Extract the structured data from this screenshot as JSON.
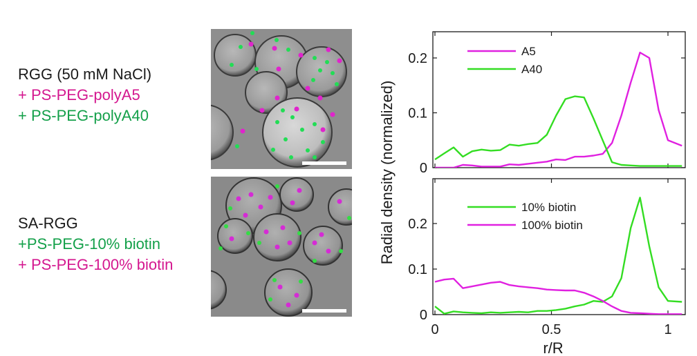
{
  "labels": {
    "top": [
      {
        "text": "RGG (50 mM NaCl)",
        "color": "#1a1a1a"
      },
      {
        "text": "+ PS-PEG-polyA5",
        "color": "#d4178f"
      },
      {
        "text": "+ PS-PEG-polyA40",
        "color": "#14a04a"
      }
    ],
    "bottom": [
      {
        "text": "SA-RGG",
        "color": "#1a1a1a"
      },
      {
        "text": "+PS-PEG-10% biotin",
        "color": "#14a04a"
      },
      {
        "text": "+ PS-PEG-100% biotin",
        "color": "#d4178f"
      }
    ]
  },
  "colors": {
    "magenta": "#e020e0",
    "green": "#33dd22",
    "label_magenta": "#d4178f",
    "label_green": "#14a04a"
  },
  "chart_data": [
    {
      "type": "line",
      "ylabel": "Radial density (normalized)",
      "xlabel": "",
      "xlim": [
        0,
        1.07
      ],
      "ylim": [
        0,
        0.25
      ],
      "yticks": [
        "0",
        "0.1",
        "0.2"
      ],
      "legend_position": "top-right",
      "series": [
        {
          "name": "A5",
          "color": "#e020e0",
          "x": [
            0,
            0.04,
            0.08,
            0.12,
            0.16,
            0.2,
            0.24,
            0.28,
            0.32,
            0.36,
            0.4,
            0.44,
            0.48,
            0.52,
            0.56,
            0.6,
            0.64,
            0.68,
            0.72,
            0.76,
            0.8,
            0.84,
            0.88,
            0.92,
            0.96,
            1.0,
            1.06
          ],
          "values": [
            0,
            0,
            0,
            0.005,
            0.004,
            0.002,
            0.002,
            0.002,
            0.006,
            0.005,
            0.007,
            0.009,
            0.011,
            0.015,
            0.014,
            0.02,
            0.02,
            0.022,
            0.025,
            0.045,
            0.095,
            0.155,
            0.21,
            0.2,
            0.105,
            0.05,
            0.04
          ]
        },
        {
          "name": "A40",
          "color": "#33dd22",
          "x": [
            0,
            0.04,
            0.08,
            0.12,
            0.16,
            0.2,
            0.24,
            0.28,
            0.32,
            0.36,
            0.4,
            0.44,
            0.48,
            0.52,
            0.56,
            0.6,
            0.64,
            0.68,
            0.72,
            0.76,
            0.8,
            0.84,
            0.88,
            0.92,
            0.96,
            1.0,
            1.06
          ],
          "values": [
            0.015,
            0.026,
            0.037,
            0.02,
            0.03,
            0.033,
            0.031,
            0.032,
            0.042,
            0.04,
            0.043,
            0.045,
            0.06,
            0.095,
            0.125,
            0.13,
            0.128,
            0.09,
            0.05,
            0.01,
            0.005,
            0.004,
            0.003,
            0.003,
            0.003,
            0.003,
            0.003
          ]
        }
      ]
    },
    {
      "type": "line",
      "ylabel": "",
      "xlabel": "r/R",
      "xlim": [
        0,
        1.07
      ],
      "ylim": [
        0,
        0.29
      ],
      "xticks": [
        "0",
        "0.5",
        "1"
      ],
      "yticks": [
        "0",
        "0.1",
        "0.2"
      ],
      "legend_position": "top-right",
      "series": [
        {
          "name": "10% biotin",
          "color": "#33dd22",
          "x": [
            0,
            0.04,
            0.08,
            0.12,
            0.16,
            0.2,
            0.24,
            0.28,
            0.32,
            0.36,
            0.4,
            0.44,
            0.48,
            0.52,
            0.56,
            0.6,
            0.64,
            0.68,
            0.72,
            0.76,
            0.8,
            0.84,
            0.88,
            0.92,
            0.96,
            1.0,
            1.06
          ],
          "values": [
            0.018,
            0.002,
            0.007,
            0.005,
            0.004,
            0.003,
            0.005,
            0.004,
            0.005,
            0.006,
            0.005,
            0.008,
            0.008,
            0.01,
            0.013,
            0.018,
            0.022,
            0.03,
            0.028,
            0.04,
            0.08,
            0.19,
            0.257,
            0.15,
            0.06,
            0.03,
            0.028
          ]
        },
        {
          "name": "100% biotin",
          "color": "#e020e0",
          "x": [
            0,
            0.04,
            0.08,
            0.12,
            0.16,
            0.2,
            0.24,
            0.28,
            0.32,
            0.36,
            0.4,
            0.44,
            0.48,
            0.52,
            0.56,
            0.6,
            0.64,
            0.68,
            0.72,
            0.76,
            0.8,
            0.84,
            0.88,
            0.92,
            0.96,
            1.0,
            1.06
          ],
          "values": [
            0.072,
            0.077,
            0.079,
            0.058,
            0.062,
            0.066,
            0.07,
            0.072,
            0.065,
            0.062,
            0.06,
            0.058,
            0.055,
            0.054,
            0.053,
            0.053,
            0.048,
            0.04,
            0.03,
            0.018,
            0.008,
            0.004,
            0.003,
            0.002,
            0.001,
            0.001,
            0.001
          ]
        }
      ]
    }
  ]
}
